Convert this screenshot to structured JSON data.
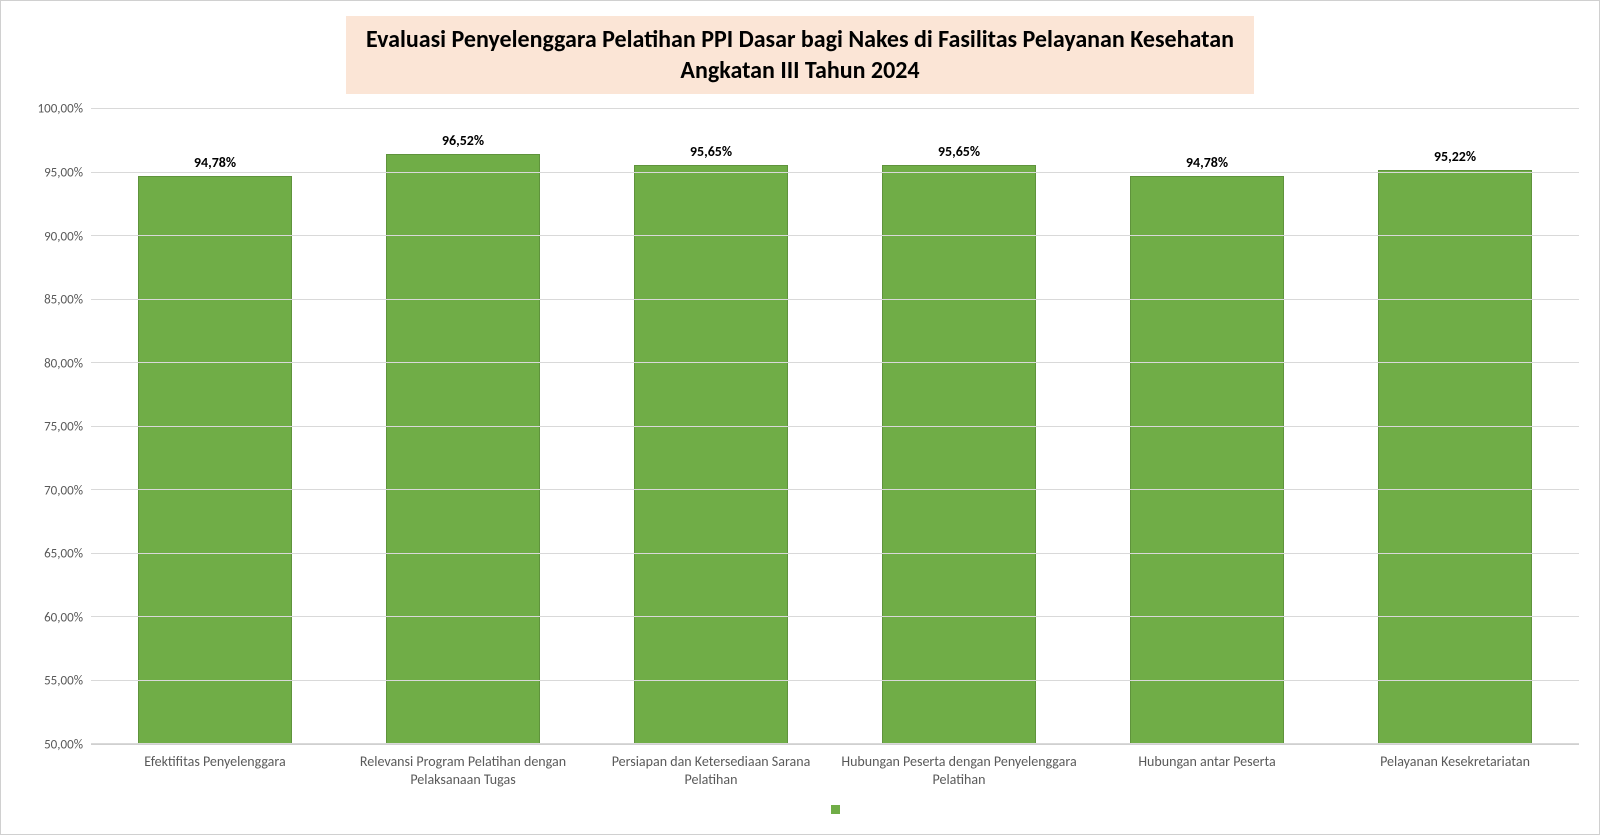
{
  "chart": {
    "type": "bar",
    "title_line1": "Evaluasi Penyelenggara Pelatihan PPI Dasar bagi Nakes di Fasilitas Pelayanan Kesehatan",
    "title_line2": "Angkatan III Tahun 2024",
    "title_bg_color": "#fbe5d6",
    "title_fontsize": 24,
    "title_color": "#000000",
    "background_color": "#ffffff",
    "bar_color": "#70ad47",
    "bar_width_pct": 62,
    "grid_color": "#d9d9d9",
    "axis_text_color": "#595959",
    "label_fontsize": 14,
    "ytick_fontsize": 13,
    "ylim": [
      50,
      100
    ],
    "ytick_step": 5,
    "yticks": [
      {
        "v": 50,
        "label": "50,00%"
      },
      {
        "v": 55,
        "label": "55,00%"
      },
      {
        "v": 60,
        "label": "60,00%"
      },
      {
        "v": 65,
        "label": "65,00%"
      },
      {
        "v": 70,
        "label": "70,00%"
      },
      {
        "v": 75,
        "label": "75,00%"
      },
      {
        "v": 80,
        "label": "80,00%"
      },
      {
        "v": 85,
        "label": "85,00%"
      },
      {
        "v": 90,
        "label": "90,00%"
      },
      {
        "v": 95,
        "label": "95,00%"
      },
      {
        "v": 100,
        "label": "100,00%"
      }
    ],
    "categories": [
      "Efektifitas Penyelenggara",
      "Relevansi Program Pelatihan dengan Pelaksanaan Tugas",
      "Persiapan dan Ketersediaan Sarana Pelatihan",
      "Hubungan Peserta dengan Penyelenggara Pelatihan",
      "Hubungan antar Peserta",
      "Pelayanan Kesekretariatan"
    ],
    "values": [
      94.78,
      96.52,
      95.65,
      95.65,
      94.78,
      95.22
    ],
    "value_labels": [
      "94,78%",
      "96,52%",
      "95,65%",
      "95,65%",
      "94,78%",
      "95,22%"
    ]
  }
}
